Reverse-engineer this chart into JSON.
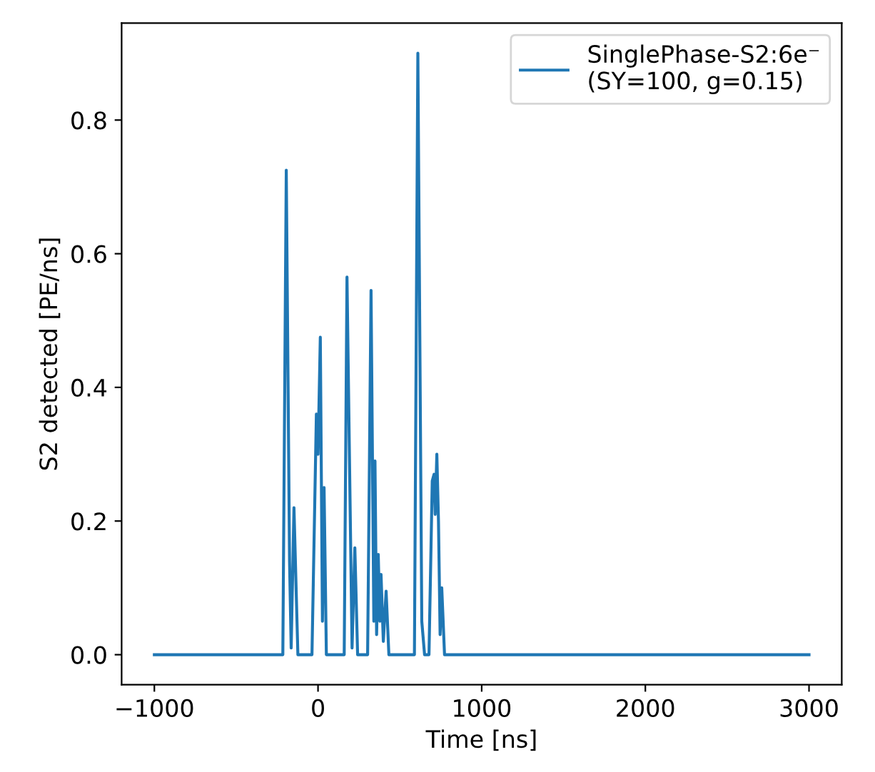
{
  "chart_data": {
    "type": "line",
    "xlabel": "Time [ns]",
    "ylabel": "S2 detected [PE/ns]",
    "series": [
      {
        "name": "SinglePhase-S2:6e⁻\n(SY=100, g=0.15)",
        "color": "#1f77b4",
        "x": [
          -1000,
          -215,
          -194,
          -174,
          -164,
          -147,
          -123,
          -37,
          -10,
          0,
          14,
          27,
          37,
          51,
          160,
          177,
          208,
          225,
          242,
          303,
          324,
          341,
          348,
          358,
          368,
          378,
          385,
          399,
          416,
          433,
          589,
          610,
          634,
          651,
          678,
          698,
          709,
          716,
          726,
          736,
          746,
          756,
          773,
          3000
        ],
        "values": [
          0,
          0,
          0.725,
          0.14,
          0.01,
          0.22,
          0,
          0,
          0.36,
          0.3,
          0.475,
          0.05,
          0.25,
          0,
          0,
          0.565,
          0.01,
          0.16,
          0,
          0,
          0.545,
          0.05,
          0.29,
          0.03,
          0.15,
          0.05,
          0.12,
          0.02,
          0.095,
          0,
          0,
          0.9,
          0.05,
          0,
          0,
          0.26,
          0.27,
          0.21,
          0.3,
          0.2,
          0.03,
          0.1,
          0,
          0
        ]
      }
    ],
    "xlim": [
      -1200,
      3200
    ],
    "xticks": [
      {
        "value": -1000,
        "label": "−1000"
      },
      0,
      1000,
      2000,
      3000
    ],
    "ylim": [
      -0.045,
      0.945
    ],
    "yticks": [
      {
        "value": 0,
        "label": "0.0"
      },
      0.2,
      0.4,
      0.6,
      0.8
    ],
    "grid": false,
    "legend": "top right",
    "line_style": "solid",
    "marker": "none"
  }
}
